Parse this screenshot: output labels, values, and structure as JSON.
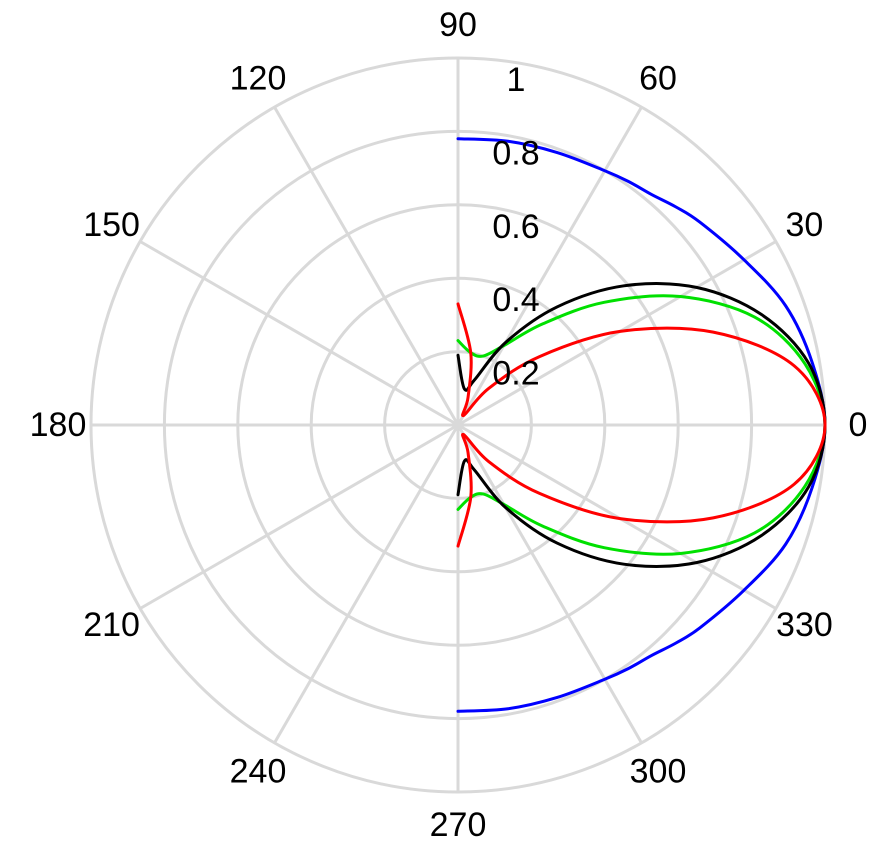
{
  "chart_data": {
    "type": "line",
    "subtype": "polar",
    "angle_unit": "degrees",
    "angular_ticks": [
      "0",
      "30",
      "60",
      "90",
      "120",
      "150",
      "180",
      "210",
      "240",
      "270",
      "300",
      "330"
    ],
    "radial_ticks": [
      "0.2",
      "0.4",
      "0.6",
      "0.8",
      "1"
    ],
    "rlim": [
      0,
      1
    ],
    "grid": true,
    "series": [
      {
        "color": "#0000ff",
        "theta": [
          0,
          10,
          20,
          30,
          40,
          45,
          50,
          55,
          60,
          70,
          80,
          90
        ],
        "r": [
          1.0,
          0.98,
          0.95,
          0.9,
          0.86,
          0.84,
          0.82,
          0.81,
          0.8,
          0.79,
          0.785,
          0.78
        ]
      },
      {
        "color": "#00e000",
        "theta": [
          0,
          10,
          20,
          30,
          40,
          50,
          60,
          70,
          80,
          90
        ],
        "r": [
          1.0,
          0.96,
          0.86,
          0.7,
          0.52,
          0.36,
          0.25,
          0.2,
          0.2,
          0.23
        ]
      },
      {
        "color": "#000000",
        "theta": [
          0,
          10,
          20,
          30,
          40,
          50,
          60,
          70,
          80,
          90
        ],
        "r": [
          1.0,
          0.97,
          0.88,
          0.75,
          0.59,
          0.42,
          0.26,
          0.13,
          0.1,
          0.19
        ]
      },
      {
        "color": "#ff0000",
        "theta": [
          0,
          10,
          20,
          30,
          40,
          50,
          60,
          70,
          80,
          90
        ],
        "r": [
          1.0,
          0.93,
          0.74,
          0.51,
          0.29,
          0.13,
          0.03,
          0.08,
          0.2,
          0.33
        ]
      }
    ]
  }
}
